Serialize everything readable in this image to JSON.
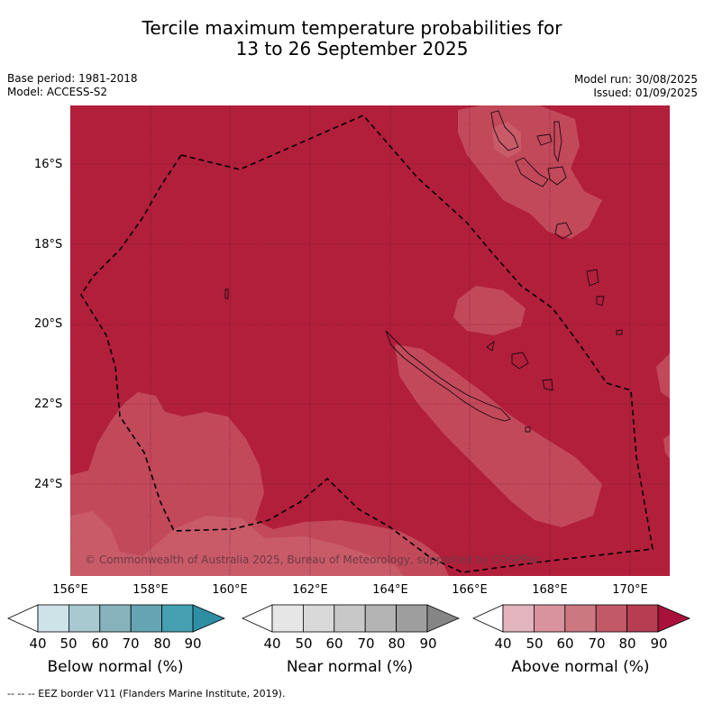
{
  "title_line1": "Tercile maximum temperature probabilities for",
  "title_line2": "13 to 26 September 2025",
  "meta": {
    "base_period": "Base period: 1981-2018",
    "model": "Model: ACCESS-S2",
    "model_run": "Model run: 30/08/2025",
    "issued": "Issued: 01/09/2025"
  },
  "axes": {
    "lat_labels": [
      "16°S",
      "18°S",
      "20°S",
      "22°S",
      "24°S"
    ],
    "lon_labels": [
      "156°E",
      "158°E",
      "160°E",
      "162°E",
      "164°E",
      "166°E",
      "168°E",
      "170°E"
    ]
  },
  "copyright": "© Commonwealth of Australia 2025, Bureau of Meteorology, supported by COSPPac",
  "colorbars": [
    {
      "title": "Below normal (%)",
      "ticks": [
        "40",
        "50",
        "60",
        "70",
        "80",
        "90"
      ],
      "colors": [
        "#ffffff",
        "#cde3e8",
        "#a7c9cf",
        "#87b3bd",
        "#65a4b2",
        "#45a0b1",
        "#2d8ea4"
      ]
    },
    {
      "title": "Near normal (%)",
      "ticks": [
        "40",
        "50",
        "60",
        "70",
        "80",
        "90"
      ],
      "colors": [
        "#ffffff",
        "#e6e6e6",
        "#d9d9d9",
        "#c8c8c8",
        "#b4b4b4",
        "#9e9e9e",
        "#858585"
      ]
    },
    {
      "title": "Above normal (%)",
      "ticks": [
        "40",
        "50",
        "60",
        "70",
        "80",
        "90"
      ],
      "colors": [
        "#ffffff",
        "#e2b4bd",
        "#d8939e",
        "#cb7881",
        "#c25967",
        "#b73d53",
        "#a8123a"
      ]
    }
  ],
  "legend_footer": "--  --  -- EEZ border V11 (Flanders Marine Institute, 2019).",
  "map_colors": {
    "dominant": "#b21f3b",
    "lighter": "#c2495a",
    "lightest": "#c95b69"
  }
}
